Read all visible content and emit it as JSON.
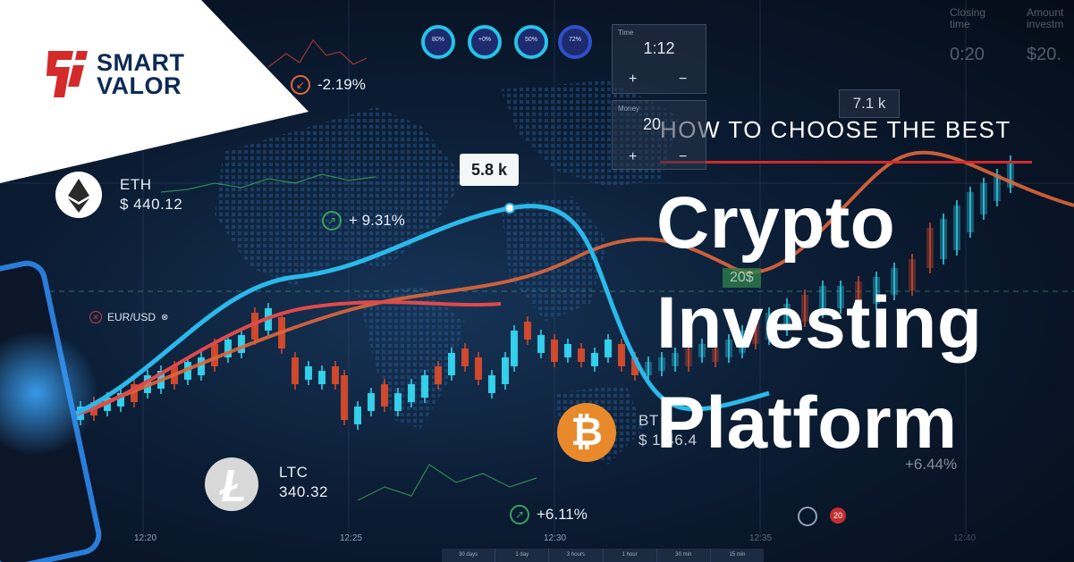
{
  "brand": {
    "name_line1": "SMART",
    "name_line2": "VALOR"
  },
  "headline": {
    "kicker": "HOW TO CHOOSE THE BEST",
    "line1": "Crypto",
    "line2": "Investing",
    "line3": "Platform"
  },
  "assets": {
    "eth": {
      "symbol": "ETH",
      "price": "$ 440.12"
    },
    "ltc": {
      "symbol": "LTC",
      "price": "340.32"
    },
    "btc": {
      "symbol": "BT",
      "price": "$ 1 46.4"
    },
    "eur_usd": {
      "symbol": "EUR/USD"
    }
  },
  "changes": {
    "top": "-2.19%",
    "mid": "+ 9.31%",
    "bottom": "+6.11%",
    "right": "+6.44%"
  },
  "tooltip": {
    "value": "5.8 k"
  },
  "badges": {
    "price_tag": "20$",
    "value_box": "7.1 k",
    "small": "20"
  },
  "trade_panel": {
    "time_label": "Time",
    "time_value": "1:12",
    "amount_label": "Money",
    "amount_value": "20",
    "plus": "+",
    "minus": "−"
  },
  "right_panel": {
    "closing_label": "Closing time",
    "closing_value": "0:20",
    "amount_label": "Amount investm",
    "amount_value": "$20."
  },
  "rings": [
    "80%",
    "+0%",
    "50%",
    "72%"
  ],
  "time_axis": [
    "12:20",
    "12:25",
    "12:30",
    "12:35",
    "12:40"
  ],
  "bottom_tabs": [
    "30 days",
    "1 day",
    "3 hours",
    "1 hour",
    "30 min",
    "15 min"
  ],
  "colors": {
    "cyan_line": "#2ab9ea",
    "red_line": "#e04a4a",
    "orange_line": "#e0663a",
    "candle_up": "#35d6f0",
    "candle_down": "#d64a2c",
    "accent_red": "#d42a2a",
    "btc_orange": "#e88a2c"
  }
}
